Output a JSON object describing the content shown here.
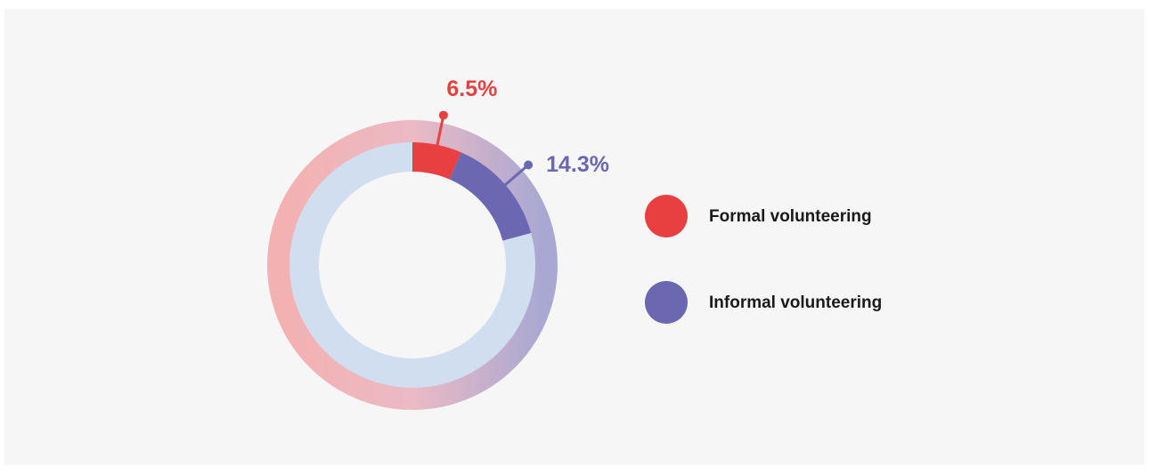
{
  "chart_data": {
    "type": "donut",
    "categories": [
      "Formal volunteering",
      "Informal volunteering"
    ],
    "values": [
      6.5,
      14.3
    ],
    "value_labels": [
      "6.5%",
      "14.3%"
    ],
    "colors": [
      "#e84040",
      "#6b67b0"
    ],
    "legend": "right"
  }
}
